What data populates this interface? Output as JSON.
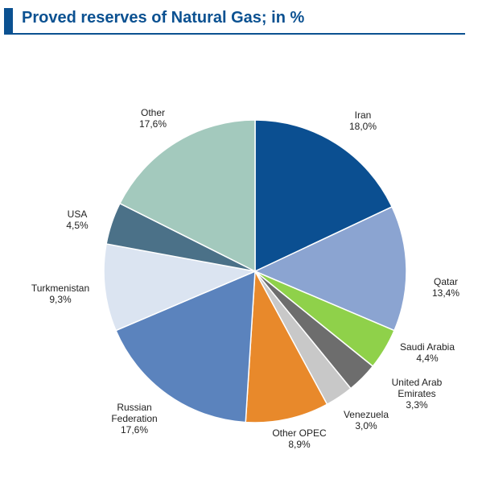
{
  "title": "Proved reserves of Natural Gas; in %",
  "chart_data": {
    "type": "pie",
    "title": "Proved reserves of Natural Gas; in %",
    "start_angle_deg": 0,
    "direction": "clockwise",
    "slices": [
      {
        "label_lines": [
          "Iran"
        ],
        "value_text": "18,0%",
        "value": 18.0,
        "color": "#0b4f91"
      },
      {
        "label_lines": [
          "Qatar"
        ],
        "value_text": "13,4%",
        "value": 13.4,
        "color": "#8ba4d1"
      },
      {
        "label_lines": [
          "Saudi Arabia"
        ],
        "value_text": "4,4%",
        "value": 4.4,
        "color": "#8fd14a"
      },
      {
        "label_lines": [
          "United Arab",
          "Emirates"
        ],
        "value_text": "3,3%",
        "value": 3.3,
        "color": "#6d6d6d"
      },
      {
        "label_lines": [
          "Venezuela"
        ],
        "value_text": "3,0%",
        "value": 3.0,
        "color": "#c8c8c8"
      },
      {
        "label_lines": [
          "Other OPEC"
        ],
        "value_text": "8,9%",
        "value": 8.9,
        "color": "#e8892b"
      },
      {
        "label_lines": [
          "Russian",
          "Federation"
        ],
        "value_text": "17,6%",
        "value": 17.6,
        "color": "#5b83bd"
      },
      {
        "label_lines": [
          "Turkmenistan"
        ],
        "value_text": "9,3%",
        "value": 9.3,
        "color": "#dbe4f1"
      },
      {
        "label_lines": [
          "USA"
        ],
        "value_text": "4,5%",
        "value": 4.5,
        "color": "#4b7188"
      },
      {
        "label_lines": [
          "Other"
        ],
        "value_text": "17,6%",
        "value": 17.6,
        "color": "#a3c9bd"
      }
    ]
  }
}
